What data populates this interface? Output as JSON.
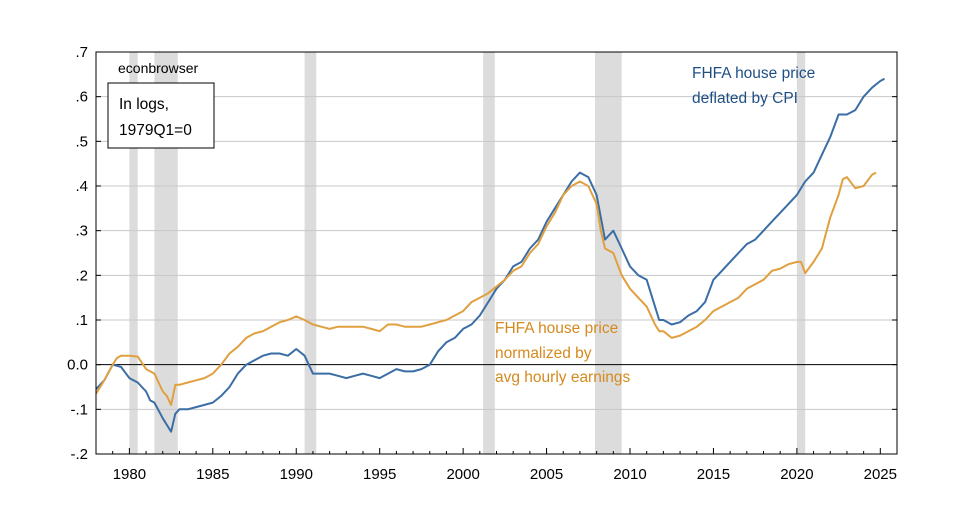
{
  "chart_data": {
    "type": "line",
    "title": "",
    "xlabel": "",
    "ylabel": "",
    "xlim": [
      1978.0,
      2026.0
    ],
    "ylim": [
      -0.2,
      0.7
    ],
    "y_ticks": [
      -0.2,
      -0.1,
      0.0,
      0.1,
      0.2,
      0.3,
      0.4,
      0.5,
      0.6,
      0.7
    ],
    "y_tick_labels": [
      "-.2",
      "-.1",
      "0.0",
      ".1",
      ".2",
      ".3",
      ".4",
      ".5",
      ".6",
      ".7"
    ],
    "x_ticks": [
      1980,
      1985,
      1990,
      1995,
      2000,
      2005,
      2010,
      2015,
      2020,
      2025
    ],
    "x_tick_labels": [
      "1980",
      "1985",
      "1990",
      "1995",
      "2000",
      "2005",
      "2010",
      "2015",
      "2020",
      "2025"
    ],
    "grid": true,
    "zero_line": true,
    "recessions": [
      [
        1980.0,
        1980.5
      ],
      [
        1981.5,
        1982.9
      ],
      [
        1990.5,
        1991.2
      ],
      [
        2001.2,
        2001.9
      ],
      [
        2007.9,
        2009.5
      ],
      [
        2020.0,
        2020.5
      ]
    ],
    "watermark": "econbrowser",
    "legend_box": {
      "line1": "In logs,",
      "line2": "1979Q1=0"
    },
    "series": [
      {
        "name": "FHFA house price deflated by CPI",
        "label_line1": "FHFA house price",
        "label_line2": "deflated by CPI",
        "color": "#3a6ea5",
        "points": [
          [
            1978.0,
            -0.055
          ],
          [
            1978.5,
            -0.035
          ],
          [
            1979.0,
            0.0
          ],
          [
            1979.5,
            -0.005
          ],
          [
            1980.0,
            -0.03
          ],
          [
            1980.5,
            -0.04
          ],
          [
            1981.0,
            -0.06
          ],
          [
            1981.25,
            -0.08
          ],
          [
            1981.5,
            -0.085
          ],
          [
            1982.0,
            -0.12
          ],
          [
            1982.25,
            -0.135
          ],
          [
            1982.5,
            -0.15
          ],
          [
            1982.75,
            -0.11
          ],
          [
            1983.0,
            -0.1
          ],
          [
            1983.5,
            -0.1
          ],
          [
            1984.0,
            -0.095
          ],
          [
            1984.5,
            -0.09
          ],
          [
            1985.0,
            -0.085
          ],
          [
            1985.5,
            -0.07
          ],
          [
            1986.0,
            -0.05
          ],
          [
            1986.5,
            -0.02
          ],
          [
            1987.0,
            0.0
          ],
          [
            1987.5,
            0.01
          ],
          [
            1988.0,
            0.02
          ],
          [
            1988.5,
            0.025
          ],
          [
            1989.0,
            0.025
          ],
          [
            1989.5,
            0.02
          ],
          [
            1990.0,
            0.035
          ],
          [
            1990.5,
            0.02
          ],
          [
            1991.0,
            -0.02
          ],
          [
            1991.5,
            -0.02
          ],
          [
            1992.0,
            -0.02
          ],
          [
            1992.5,
            -0.025
          ],
          [
            1993.0,
            -0.03
          ],
          [
            1993.5,
            -0.025
          ],
          [
            1994.0,
            -0.02
          ],
          [
            1994.5,
            -0.025
          ],
          [
            1995.0,
            -0.03
          ],
          [
            1995.5,
            -0.02
          ],
          [
            1996.0,
            -0.01
          ],
          [
            1996.5,
            -0.015
          ],
          [
            1997.0,
            -0.015
          ],
          [
            1997.5,
            -0.01
          ],
          [
            1998.0,
            0.0
          ],
          [
            1998.5,
            0.03
          ],
          [
            1999.0,
            0.05
          ],
          [
            1999.5,
            0.06
          ],
          [
            2000.0,
            0.08
          ],
          [
            2000.5,
            0.09
          ],
          [
            2001.0,
            0.11
          ],
          [
            2001.5,
            0.14
          ],
          [
            2002.0,
            0.17
          ],
          [
            2002.5,
            0.19
          ],
          [
            2003.0,
            0.22
          ],
          [
            2003.5,
            0.23
          ],
          [
            2004.0,
            0.26
          ],
          [
            2004.5,
            0.28
          ],
          [
            2005.0,
            0.32
          ],
          [
            2005.5,
            0.35
          ],
          [
            2006.0,
            0.38
          ],
          [
            2006.5,
            0.41
          ],
          [
            2007.0,
            0.43
          ],
          [
            2007.5,
            0.42
          ],
          [
            2008.0,
            0.38
          ],
          [
            2008.25,
            0.33
          ],
          [
            2008.5,
            0.28
          ],
          [
            2009.0,
            0.3
          ],
          [
            2009.5,
            0.26
          ],
          [
            2010.0,
            0.22
          ],
          [
            2010.5,
            0.2
          ],
          [
            2011.0,
            0.19
          ],
          [
            2011.5,
            0.13
          ],
          [
            2011.75,
            0.1
          ],
          [
            2012.0,
            0.1
          ],
          [
            2012.5,
            0.09
          ],
          [
            2013.0,
            0.095
          ],
          [
            2013.5,
            0.11
          ],
          [
            2014.0,
            0.12
          ],
          [
            2014.5,
            0.14
          ],
          [
            2015.0,
            0.19
          ],
          [
            2015.5,
            0.21
          ],
          [
            2016.0,
            0.23
          ],
          [
            2016.5,
            0.25
          ],
          [
            2017.0,
            0.27
          ],
          [
            2017.5,
            0.28
          ],
          [
            2018.0,
            0.3
          ],
          [
            2018.5,
            0.32
          ],
          [
            2019.0,
            0.34
          ],
          [
            2019.5,
            0.36
          ],
          [
            2020.0,
            0.38
          ],
          [
            2020.5,
            0.41
          ],
          [
            2021.0,
            0.43
          ],
          [
            2021.5,
            0.47
          ],
          [
            2022.0,
            0.51
          ],
          [
            2022.5,
            0.56
          ],
          [
            2023.0,
            0.56
          ],
          [
            2023.5,
            0.57
          ],
          [
            2024.0,
            0.6
          ],
          [
            2024.5,
            0.62
          ],
          [
            2025.0,
            0.635
          ],
          [
            2025.25,
            0.64
          ]
        ]
      },
      {
        "name": "FHFA house price normalized by avg hourly earnings",
        "label_line1": "FHFA house price",
        "label_line2": "normalized by",
        "label_line3": "avg hourly earnings",
        "color": "#e0a040",
        "points": [
          [
            1978.0,
            -0.065
          ],
          [
            1978.5,
            -0.035
          ],
          [
            1979.0,
            0.0
          ],
          [
            1979.25,
            0.015
          ],
          [
            1979.5,
            0.02
          ],
          [
            1980.0,
            0.02
          ],
          [
            1980.5,
            0.018
          ],
          [
            1981.0,
            -0.01
          ],
          [
            1981.5,
            -0.02
          ],
          [
            1982.0,
            -0.06
          ],
          [
            1982.25,
            -0.07
          ],
          [
            1982.5,
            -0.09
          ],
          [
            1982.75,
            -0.045
          ],
          [
            1983.0,
            -0.045
          ],
          [
            1983.5,
            -0.04
          ],
          [
            1984.0,
            -0.035
          ],
          [
            1984.5,
            -0.03
          ],
          [
            1985.0,
            -0.02
          ],
          [
            1985.5,
            0.0
          ],
          [
            1986.0,
            0.025
          ],
          [
            1986.5,
            0.04
          ],
          [
            1987.0,
            0.06
          ],
          [
            1987.5,
            0.07
          ],
          [
            1988.0,
            0.075
          ],
          [
            1988.5,
            0.085
          ],
          [
            1989.0,
            0.095
          ],
          [
            1989.5,
            0.1
          ],
          [
            1990.0,
            0.108
          ],
          [
            1990.5,
            0.1
          ],
          [
            1991.0,
            0.09
          ],
          [
            1991.5,
            0.085
          ],
          [
            1992.0,
            0.08
          ],
          [
            1992.5,
            0.085
          ],
          [
            1993.0,
            0.085
          ],
          [
            1993.5,
            0.085
          ],
          [
            1994.0,
            0.085
          ],
          [
            1994.5,
            0.08
          ],
          [
            1995.0,
            0.075
          ],
          [
            1995.5,
            0.09
          ],
          [
            1996.0,
            0.09
          ],
          [
            1996.5,
            0.085
          ],
          [
            1997.0,
            0.085
          ],
          [
            1997.5,
            0.085
          ],
          [
            1998.0,
            0.09
          ],
          [
            1998.5,
            0.095
          ],
          [
            1999.0,
            0.1
          ],
          [
            1999.5,
            0.11
          ],
          [
            2000.0,
            0.12
          ],
          [
            2000.5,
            0.14
          ],
          [
            2001.0,
            0.15
          ],
          [
            2001.5,
            0.16
          ],
          [
            2002.0,
            0.175
          ],
          [
            2002.5,
            0.19
          ],
          [
            2003.0,
            0.21
          ],
          [
            2003.5,
            0.22
          ],
          [
            2004.0,
            0.25
          ],
          [
            2004.5,
            0.27
          ],
          [
            2005.0,
            0.31
          ],
          [
            2005.5,
            0.34
          ],
          [
            2006.0,
            0.38
          ],
          [
            2006.5,
            0.4
          ],
          [
            2007.0,
            0.41
          ],
          [
            2007.5,
            0.4
          ],
          [
            2008.0,
            0.36
          ],
          [
            2008.25,
            0.3
          ],
          [
            2008.5,
            0.26
          ],
          [
            2009.0,
            0.25
          ],
          [
            2009.5,
            0.2
          ],
          [
            2010.0,
            0.17
          ],
          [
            2010.5,
            0.15
          ],
          [
            2011.0,
            0.13
          ],
          [
            2011.5,
            0.09
          ],
          [
            2011.75,
            0.075
          ],
          [
            2012.0,
            0.075
          ],
          [
            2012.5,
            0.06
          ],
          [
            2013.0,
            0.065
          ],
          [
            2013.5,
            0.075
          ],
          [
            2014.0,
            0.085
          ],
          [
            2014.5,
            0.1
          ],
          [
            2015.0,
            0.12
          ],
          [
            2015.5,
            0.13
          ],
          [
            2016.0,
            0.14
          ],
          [
            2016.5,
            0.15
          ],
          [
            2017.0,
            0.17
          ],
          [
            2017.5,
            0.18
          ],
          [
            2018.0,
            0.19
          ],
          [
            2018.5,
            0.21
          ],
          [
            2019.0,
            0.215
          ],
          [
            2019.5,
            0.225
          ],
          [
            2020.0,
            0.23
          ],
          [
            2020.25,
            0.23
          ],
          [
            2020.5,
            0.205
          ],
          [
            2021.0,
            0.23
          ],
          [
            2021.5,
            0.26
          ],
          [
            2022.0,
            0.33
          ],
          [
            2022.5,
            0.38
          ],
          [
            2022.75,
            0.415
          ],
          [
            2023.0,
            0.42
          ],
          [
            2023.5,
            0.395
          ],
          [
            2024.0,
            0.4
          ],
          [
            2024.5,
            0.425
          ],
          [
            2024.75,
            0.43
          ]
        ]
      }
    ]
  }
}
